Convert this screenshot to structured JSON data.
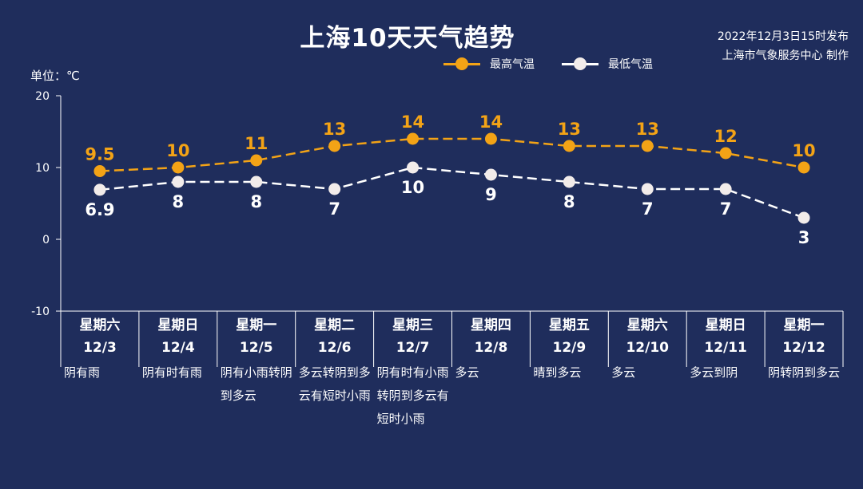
{
  "title": "上海10天天气趋势",
  "issuer": {
    "line1": "2022年12月3日15时发布",
    "line2": "上海市气象服务中心 制作"
  },
  "unit_label": "单位：℃",
  "legend": {
    "high_label": "最高气温",
    "low_label": "最低气温"
  },
  "colors": {
    "background": "#1f2d5c",
    "high": "#f3a316",
    "low": "#ffffff",
    "axis": "#ffffff"
  },
  "chart_data": {
    "type": "line",
    "title": "上海10天天气趋势",
    "ylabel": "单位：℃",
    "ylim": [
      -10,
      20
    ],
    "yticks": [
      20,
      10,
      0,
      -10
    ],
    "categories": [
      "12/3",
      "12/4",
      "12/5",
      "12/6",
      "12/7",
      "12/8",
      "12/9",
      "12/10",
      "12/11",
      "12/12"
    ],
    "series": [
      {
        "name": "最高气温",
        "values": [
          9.5,
          10,
          11,
          13,
          14,
          14,
          13,
          13,
          12,
          10
        ],
        "color": "#f3a316",
        "style": "dashed"
      },
      {
        "name": "最低气温",
        "values": [
          6.9,
          8,
          8,
          7,
          10,
          9,
          8,
          7,
          7,
          3
        ],
        "color": "#ffffff",
        "style": "dashed"
      }
    ],
    "grid": false,
    "legend_position": "top-right"
  },
  "days": [
    {
      "weekday": "星期六",
      "date": "12/3",
      "weather": "阴有雨"
    },
    {
      "weekday": "星期日",
      "date": "12/4",
      "weather": "阴有时有雨"
    },
    {
      "weekday": "星期一",
      "date": "12/5",
      "weather": "阴有小雨转阴到多云"
    },
    {
      "weekday": "星期二",
      "date": "12/6",
      "weather": "多云转阴到多云有短时小雨"
    },
    {
      "weekday": "星期三",
      "date": "12/7",
      "weather": "阴有时有小雨转阴到多云有短时小雨"
    },
    {
      "weekday": "星期四",
      "date": "12/8",
      "weather": "多云"
    },
    {
      "weekday": "星期五",
      "date": "12/9",
      "weather": "晴到多云"
    },
    {
      "weekday": "星期六",
      "date": "12/10",
      "weather": "多云"
    },
    {
      "weekday": "星期日",
      "date": "12/11",
      "weather": "多云到阴"
    },
    {
      "weekday": "星期一",
      "date": "12/12",
      "weather": "阴转阴到多云"
    }
  ]
}
